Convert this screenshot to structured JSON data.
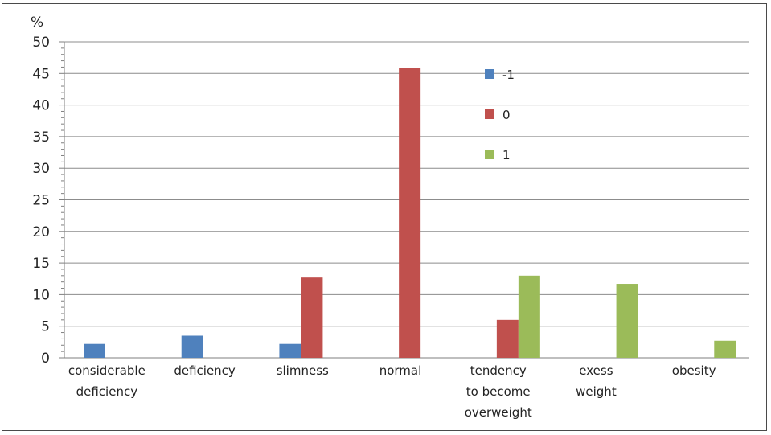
{
  "chart_data": {
    "type": "bar",
    "ylabel": "%",
    "ylim": [
      0,
      50
    ],
    "yticks": [
      0,
      5,
      10,
      15,
      20,
      25,
      30,
      35,
      40,
      45,
      50
    ],
    "grid": true,
    "legend_position": "top-right",
    "categories": [
      "considerable deficiency",
      "deficiency",
      "slimness",
      "normal",
      "tendency to become overweight",
      "exess weight",
      "obesity"
    ],
    "category_label_lines": [
      [
        "considerable",
        "deficiency"
      ],
      [
        "deficiency"
      ],
      [
        "slimness"
      ],
      [
        "normal"
      ],
      [
        "tendency",
        "to become",
        "overweight"
      ],
      [
        "exess",
        "weight"
      ],
      [
        "obesity"
      ]
    ],
    "series": [
      {
        "name": "-1",
        "color": "#4f81bd",
        "values": [
          2.2,
          3.5,
          2.2,
          null,
          null,
          null,
          null
        ]
      },
      {
        "name": "0",
        "color": "#c0504d",
        "values": [
          null,
          null,
          12.7,
          45.9,
          6.0,
          null,
          null
        ]
      },
      {
        "name": "1",
        "color": "#9bbb59",
        "values": [
          null,
          null,
          null,
          null,
          13.0,
          11.7,
          2.7
        ]
      }
    ]
  }
}
